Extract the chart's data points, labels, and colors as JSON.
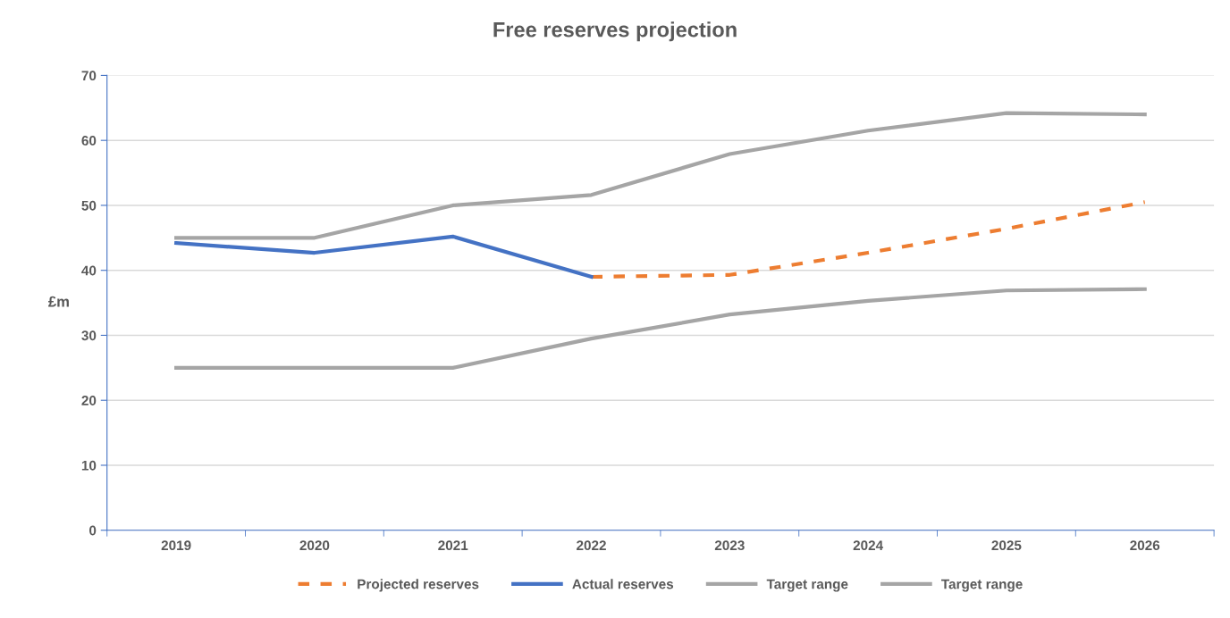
{
  "chart_data": {
    "type": "line",
    "title": "Free reserves projection",
    "ylabel": "£m",
    "categories": [
      "2019",
      "2020",
      "2021",
      "2022",
      "2023",
      "2024",
      "2025",
      "2026"
    ],
    "series": [
      {
        "name": "Projected reserves",
        "color": "#ed7d31",
        "line_style": "dashed",
        "values": [
          null,
          null,
          null,
          39.0,
          39.3,
          42.7,
          46.4,
          50.5
        ]
      },
      {
        "name": "Actual reserves",
        "color": "#4472c4",
        "line_style": "solid",
        "values": [
          44.2,
          42.7,
          45.2,
          39.0,
          null,
          null,
          null,
          null
        ]
      },
      {
        "name": "Target range",
        "color": "#a5a5a5",
        "line_style": "solid",
        "values": [
          45.0,
          45.0,
          50.0,
          51.6,
          57.9,
          61.5,
          64.2,
          64.0
        ]
      },
      {
        "name": "Target range",
        "color": "#a5a5a5",
        "line_style": "solid",
        "values": [
          25.0,
          25.0,
          25.0,
          29.5,
          33.2,
          35.3,
          36.9,
          37.1
        ]
      }
    ],
    "ylim": [
      0,
      70
    ],
    "yticks": [
      0,
      10,
      20,
      30,
      40,
      50,
      60,
      70
    ],
    "grid": "y",
    "legend": "bottom",
    "marker": "none"
  }
}
